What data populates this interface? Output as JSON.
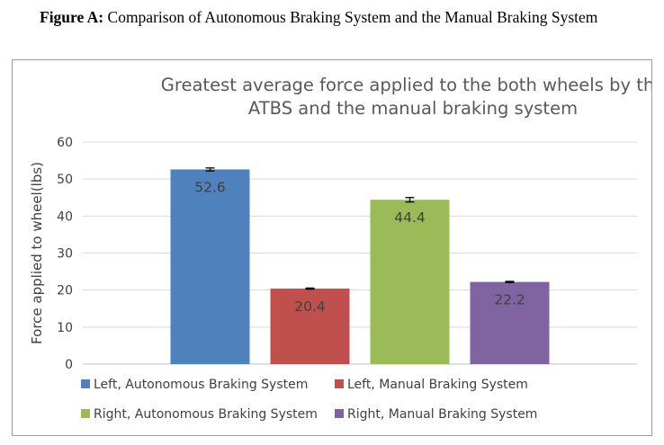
{
  "caption": {
    "lead": "Figure A:",
    "text": " Comparison of Autonomous Braking System and the Manual Braking System"
  },
  "chart_data": {
    "type": "bar",
    "title_lines": [
      "Greatest average force applied to the both wheels by the",
      "ATBS and the manual braking system"
    ],
    "xlabel": "",
    "ylabel": "Force applied to wheel(lbs)",
    "ylim": [
      0,
      60
    ],
    "yticks": [
      0,
      10,
      20,
      30,
      40,
      50,
      60
    ],
    "grid": true,
    "legend_position": "bottom",
    "series": [
      {
        "name": "Left, Autonomous Braking System",
        "value": 52.6,
        "label": "52.6",
        "error": 0.4,
        "color": "#4f81bd"
      },
      {
        "name": "Left, Manual Braking System",
        "value": 20.4,
        "label": "20.4",
        "error": 0.15,
        "color": "#c0504d"
      },
      {
        "name": "Right, Autonomous Braking System",
        "value": 44.4,
        "label": "44.4",
        "error": 0.6,
        "color": "#9bbb59"
      },
      {
        "name": "Right, Manual Braking System",
        "value": 22.2,
        "label": "22.2",
        "error": 0.15,
        "color": "#8064a2"
      }
    ],
    "colors": {
      "grid": "#d9d9d9",
      "axis": "#bfbfbf",
      "title": "#595959",
      "text": "#404040",
      "error_bar": "#000000"
    }
  }
}
